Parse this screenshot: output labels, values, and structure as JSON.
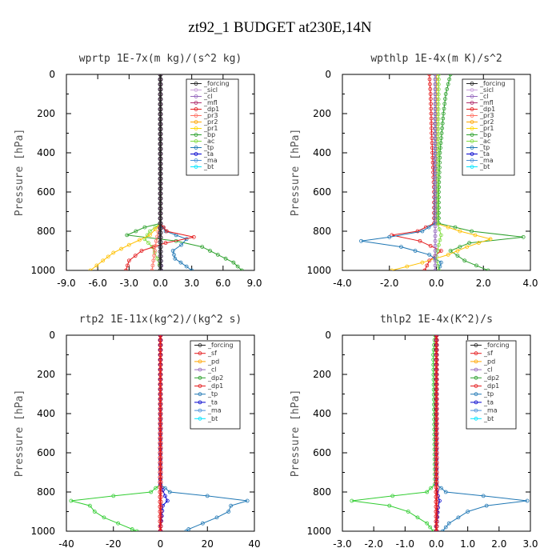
{
  "figure": {
    "title": "zt92_1  BUDGET at230E,14N"
  },
  "chart_data": [
    {
      "type": "line",
      "title": "wprtp  1E-7x(m kg)/(s^2 kg)",
      "xlabel": "",
      "ylabel": "Pressure [hPa]",
      "xlim": [
        -9,
        9
      ],
      "ylim": [
        1000,
        0
      ],
      "xticks": [
        "-9.0",
        "-6.0",
        "-3.0",
        "0.0",
        "3.0",
        "6.0",
        "9.0"
      ],
      "yticks": [
        "0",
        "200",
        "400",
        "600",
        "800",
        "1000"
      ],
      "grid": false,
      "legend": "top-right",
      "legend_labels": [
        "_forcing",
        "_sicl",
        "_cl",
        "_mfl",
        "_dp1",
        "_pr3",
        "_pr2",
        "_pr1",
        "_bp",
        "_ac",
        "_tp",
        "_ta",
        "_ma",
        "_bt"
      ],
      "series": [
        {
          "name": "_forcing",
          "color": "#222222",
          "y": [
            0,
            760,
            1000
          ],
          "x": [
            0.0,
            0.0,
            0.0
          ]
        },
        {
          "name": "_bp",
          "color": "#2ca02c",
          "y": [
            0,
            760,
            780,
            820,
            850,
            880,
            920,
            960,
            1000
          ],
          "x": [
            0,
            0,
            -1.5,
            -3.2,
            1.5,
            4.0,
            5.5,
            7.0,
            7.8
          ]
        },
        {
          "name": "_ac",
          "color": "#7fdc3f",
          "y": [
            0,
            760,
            800,
            840,
            880,
            940,
            1000
          ],
          "x": [
            0,
            0,
            -1.0,
            -1.5,
            -0.8,
            -0.3,
            0.1
          ]
        },
        {
          "name": "_tp",
          "color": "#1f77b4",
          "y": [
            0,
            760,
            800,
            840,
            870,
            900,
            940,
            980,
            1000
          ],
          "x": [
            0,
            0,
            0.5,
            2.5,
            2.0,
            1.2,
            1.4,
            2.5,
            3.0
          ]
        },
        {
          "name": "_dp1",
          "color": "#e41a1c",
          "y": [
            0,
            760,
            800,
            830,
            860,
            900,
            950,
            1000
          ],
          "x": [
            0,
            0,
            0.6,
            3.2,
            0.5,
            -1.8,
            -3.0,
            -3.3
          ]
        },
        {
          "name": "_pr1",
          "color": "#ffc000",
          "y": [
            0,
            760,
            820,
            870,
            910,
            950,
            1000
          ],
          "x": [
            0,
            0,
            -1.0,
            -3.0,
            -4.5,
            -5.5,
            -6.7
          ]
        },
        {
          "name": "_pr3",
          "color": "#ff6f61",
          "y": [
            0,
            760,
            850,
            1000
          ],
          "x": [
            0,
            0,
            -0.4,
            -0.8
          ]
        },
        {
          "name": "_sicl",
          "color": "#9467bd",
          "y": [
            0,
            760,
            1000
          ],
          "x": [
            0,
            0,
            0.1
          ]
        }
      ]
    },
    {
      "type": "line",
      "title": "wpthlp  1E-4x(m K)/s^2",
      "xlabel": "",
      "ylabel": "Pressure [hPa]",
      "xlim": [
        -4,
        4
      ],
      "ylim": [
        1000,
        0
      ],
      "xticks": [
        "-4.0",
        "-2.0",
        "0.0",
        "2.0",
        "4.0"
      ],
      "yticks": [
        "0",
        "200",
        "400",
        "600",
        "800",
        "1000"
      ],
      "grid": false,
      "legend": "top-right",
      "legend_labels": [
        "_forcing",
        "_sicl",
        "_cl",
        "_mfl",
        "_dp1",
        "_pr3",
        "_pr2",
        "_pr1",
        "_bp",
        "_ac",
        "_tp",
        "_ta",
        "_ma",
        "_bt"
      ],
      "series": [
        {
          "name": "_bp",
          "color": "#2ca02c",
          "y": [
            0,
            100,
            200,
            400,
            600,
            760,
            800,
            830,
            860,
            900,
            950,
            1000
          ],
          "x": [
            0.6,
            0.4,
            0.3,
            0.15,
            0.1,
            0.1,
            1.5,
            3.7,
            1.4,
            0.6,
            1.2,
            2.2
          ]
        },
        {
          "name": "_dp1",
          "color": "#e41a1c",
          "y": [
            0,
            100,
            300,
            600,
            760,
            800,
            820,
            850,
            900,
            950,
            1000
          ],
          "x": [
            -0.3,
            -0.25,
            -0.2,
            -0.1,
            -0.1,
            -0.8,
            -1.9,
            -0.7,
            0.2,
            -0.3,
            -0.5
          ]
        },
        {
          "name": "_pr1",
          "color": "#ffc000",
          "y": [
            0,
            760,
            800,
            840,
            880,
            920,
            960,
            1000
          ],
          "x": [
            0,
            0,
            1.0,
            2.3,
            1.3,
            0.5,
            -0.6,
            -1.9
          ]
        },
        {
          "name": "_tp",
          "color": "#1f77b4",
          "y": [
            0,
            760,
            800,
            830,
            850,
            880,
            920,
            960,
            1000
          ],
          "x": [
            -0.05,
            -0.05,
            -0.6,
            -2.0,
            -3.2,
            -1.5,
            -0.3,
            0.2,
            0.1
          ]
        },
        {
          "name": "_ac",
          "color": "#7fdc3f",
          "y": [
            0,
            760,
            820,
            870,
            930,
            1000
          ],
          "x": [
            0.1,
            0.05,
            0.2,
            0.1,
            0.0,
            0.1
          ]
        },
        {
          "name": "_sicl",
          "color": "#9467bd",
          "y": [
            0,
            1000
          ],
          "x": [
            -0.05,
            -0.05
          ]
        }
      ]
    },
    {
      "type": "line",
      "title": "rtp2  1E-11x(kg^2)/(kg^2 s)",
      "xlabel": "",
      "ylabel": "Pressure [hPa]",
      "xlim": [
        -40,
        40
      ],
      "ylim": [
        1000,
        0
      ],
      "xticks": [
        "-40",
        "-20",
        "0",
        "20",
        "40"
      ],
      "yticks": [
        "0",
        "200",
        "400",
        "600",
        "800",
        "1000"
      ],
      "grid": false,
      "legend": "top-right",
      "legend_labels": [
        "_forcing",
        "_sf",
        "_pd",
        "_cl",
        "_dp2",
        "_dp1",
        "_tp",
        "_ta",
        "_ma",
        "_bt"
      ],
      "series": [
        {
          "name": "_dp1",
          "color": "#32cd32",
          "y": [
            0,
            760,
            800,
            820,
            845,
            870,
            900,
            930,
            960,
            990,
            1000
          ],
          "x": [
            0,
            0,
            -4,
            -20,
            -38,
            -30,
            -28,
            -24,
            -18,
            -12,
            -10
          ]
        },
        {
          "name": "_tp",
          "color": "#1f77b4",
          "y": [
            0,
            760,
            800,
            820,
            845,
            870,
            900,
            930,
            960,
            990,
            1000
          ],
          "x": [
            0,
            0,
            4,
            20,
            37,
            30,
            29,
            24,
            18,
            12,
            11
          ]
        },
        {
          "name": "_ta",
          "color": "#0000cd",
          "y": [
            0,
            760,
            820,
            845,
            870,
            1000
          ],
          "x": [
            0,
            0,
            2,
            3,
            1,
            0
          ]
        },
        {
          "name": "_forcing",
          "color": "#e41a1c",
          "y": [
            0,
            1000
          ],
          "x": [
            0,
            0
          ]
        }
      ]
    },
    {
      "type": "line",
      "title": "thlp2  1E-4x(K^2)/s",
      "xlabel": "",
      "ylabel": "Pressure [hPa]",
      "xlim": [
        -3,
        3
      ],
      "ylim": [
        1000,
        0
      ],
      "xticks": [
        "-3.0",
        "-2.0",
        "-1.0",
        "0.0",
        "1.0",
        "2.0",
        "3.0"
      ],
      "yticks": [
        "0",
        "200",
        "400",
        "600",
        "800",
        "1000"
      ],
      "grid": false,
      "legend": "top-right",
      "legend_labels": [
        "_forcing",
        "_sf",
        "_pd",
        "_cl",
        "_dp2",
        "_dp1",
        "_tp",
        "_ta",
        "_ma",
        "_bt"
      ],
      "series": [
        {
          "name": "_dp1",
          "color": "#32cd32",
          "y": [
            0,
            100,
            760,
            800,
            820,
            845,
            870,
            900,
            930,
            960,
            1000
          ],
          "x": [
            -0.05,
            -0.1,
            -0.05,
            -0.3,
            -1.4,
            -2.7,
            -1.5,
            -0.9,
            -0.6,
            -0.3,
            -0.1
          ]
        },
        {
          "name": "_tp",
          "color": "#1f77b4",
          "y": [
            0,
            760,
            800,
            820,
            845,
            870,
            900,
            930,
            960,
            1000
          ],
          "x": [
            0,
            0,
            0.3,
            1.5,
            2.9,
            1.6,
            1.0,
            0.7,
            0.4,
            0.2
          ]
        },
        {
          "name": "_ta",
          "color": "#0000cd",
          "y": [
            0,
            760,
            820,
            845,
            880,
            1000
          ],
          "x": [
            0,
            0,
            0.05,
            0.1,
            0.05,
            0
          ]
        },
        {
          "name": "_forcing",
          "color": "#e41a1c",
          "y": [
            0,
            1000
          ],
          "x": [
            0,
            0
          ]
        }
      ]
    }
  ],
  "legend_colors": {
    "_forcing": "#222222",
    "_sicl": "#c9a0dc",
    "_cl": "#9467bd",
    "_mfl": "#b0306e",
    "_dp1": "#e41a1c",
    "_pr3": "#ff6f61",
    "_pr2": "#ffa500",
    "_pr1": "#ffd700",
    "_bp": "#2ca02c",
    "_ac": "#7fdc3f",
    "_tp": "#1f77b4",
    "_ta": "#0000cd",
    "_ma": "#4a90d9",
    "_bt": "#00e5ff",
    "_sf": "#e41a1c",
    "_pd": "#ffa500",
    "_dp2": "#2ca02c"
  }
}
